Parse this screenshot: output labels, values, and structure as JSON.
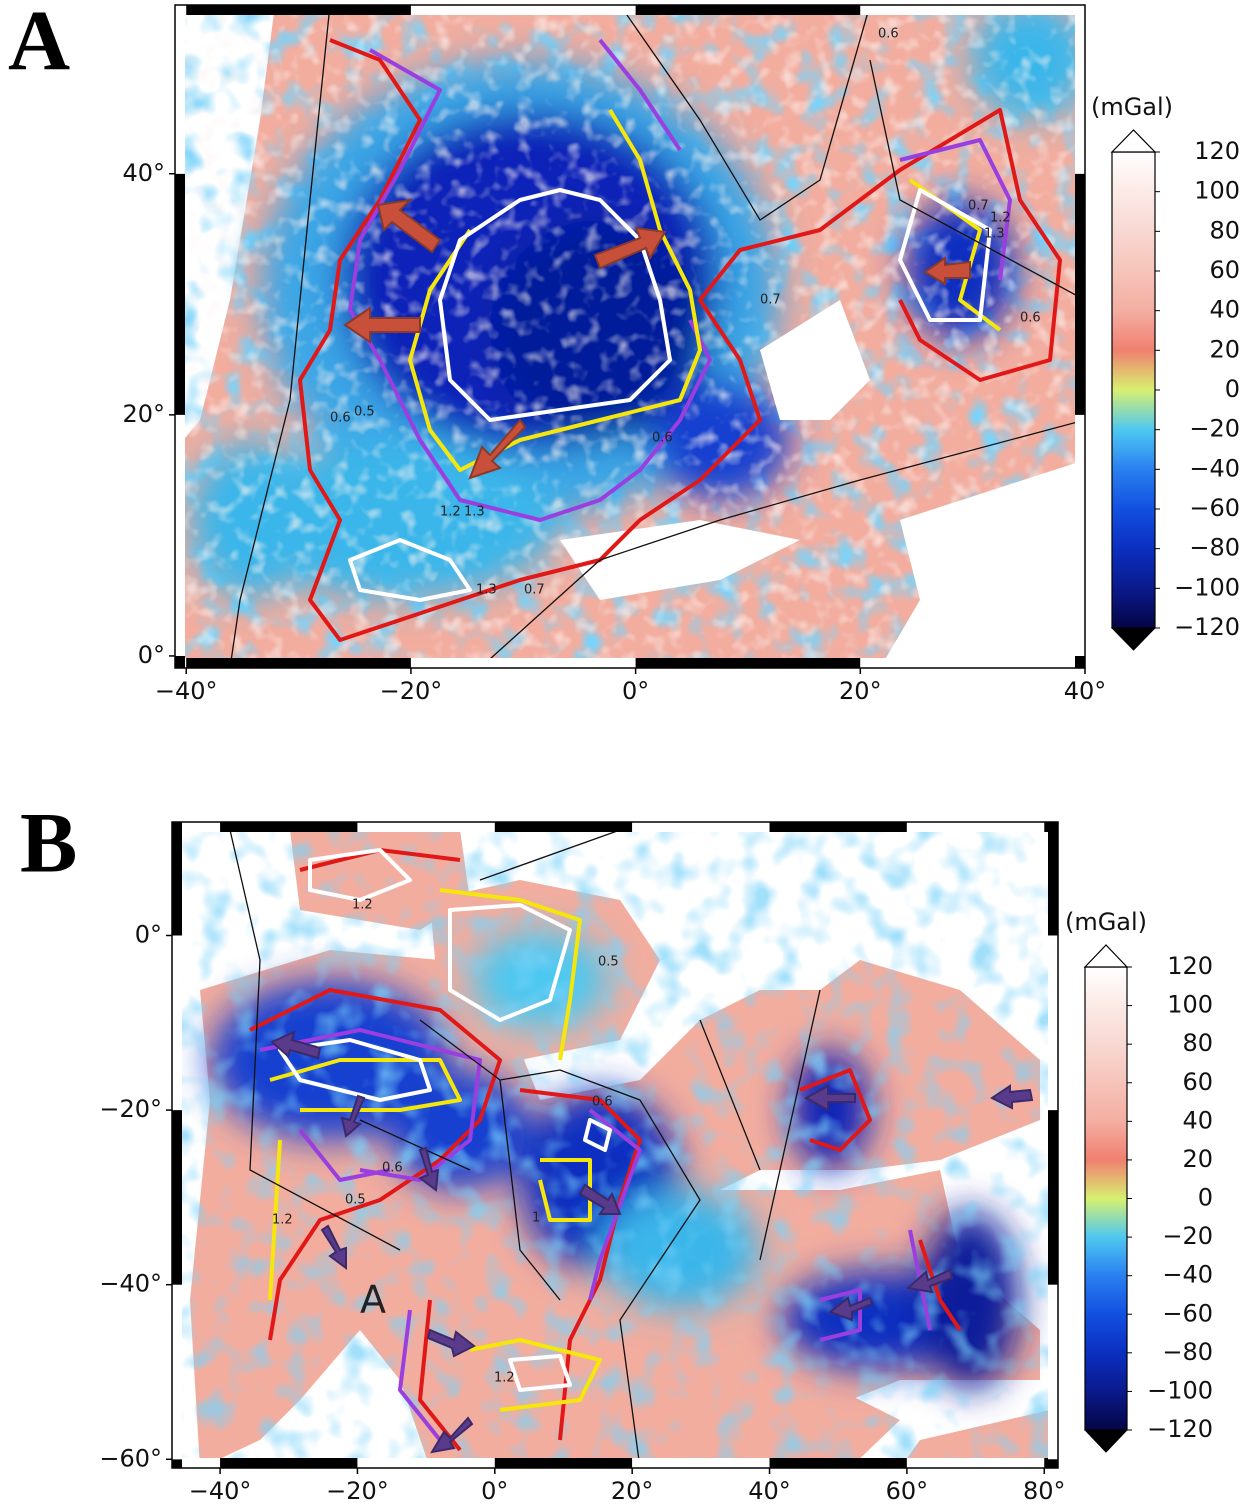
{
  "panels": [
    {
      "label": "A",
      "xlim": [
        -41,
        40
      ],
      "ylim": [
        -1,
        54
      ],
      "xticks": [
        {
          "value": -40,
          "label": "−40°"
        },
        {
          "value": -20,
          "label": "−20°"
        },
        {
          "value": 0,
          "label": "0°"
        },
        {
          "value": 20,
          "label": "20°"
        },
        {
          "value": 40,
          "label": "40°"
        }
      ],
      "yticks": [
        {
          "value": 0,
          "label": "0°"
        },
        {
          "value": 20,
          "label": "20°"
        },
        {
          "value": 40,
          "label": "40°"
        }
      ],
      "colorbar": {
        "unit": "(mGal)",
        "lim": [
          -120,
          120
        ],
        "ticks": [
          120,
          100,
          80,
          60,
          40,
          20,
          0,
          {
            "value": -20,
            "label": "−20"
          },
          {
            "value": -40,
            "label": "−40"
          },
          {
            "value": -60,
            "label": "−60"
          },
          {
            "value": -80,
            "label": "−80"
          },
          {
            "value": -100,
            "label": "−100"
          },
          {
            "value": -120,
            "label": "−120"
          }
        ],
        "colors": [
          "#050545",
          "#0a1a8c",
          "#0b2fc0",
          "#1250e0",
          "#2a80f0",
          "#4ec8f0",
          "#d8f070",
          "#f08070",
          "#f4aea2",
          "#f6c4ba",
          "#f8d8d2",
          "#fbeae6",
          "#ffffff"
        ]
      },
      "contour_labels": [
        0.6,
        0.5,
        1.2,
        1.3,
        0.7,
        1.3,
        0.6,
        0.7,
        0.6,
        0.7,
        1.2,
        1.3,
        0.6
      ]
    },
    {
      "label": "B",
      "xlim": [
        -47,
        82
      ],
      "ylim": [
        -61,
        13
      ],
      "xticks": [
        {
          "value": -40,
          "label": "−40°"
        },
        {
          "value": -20,
          "label": "−20°"
        },
        {
          "value": 0,
          "label": "0°"
        },
        {
          "value": 20,
          "label": "20°"
        },
        {
          "value": 40,
          "label": "40°"
        },
        {
          "value": 60,
          "label": "60°"
        },
        {
          "value": 80,
          "label": "80°"
        }
      ],
      "yticks": [
        {
          "value": 0,
          "label": "0°"
        },
        {
          "value": -20,
          "label": "−20°"
        },
        {
          "value": -40,
          "label": "−40°"
        },
        {
          "value": -60,
          "label": "−60°"
        }
      ],
      "colorbar": {
        "unit": "(mGal)",
        "lim": [
          -120,
          120
        ],
        "ticks": [
          120,
          100,
          80,
          60,
          40,
          20,
          0,
          {
            "value": -20,
            "label": "−20"
          },
          {
            "value": -40,
            "label": "−40"
          },
          {
            "value": -60,
            "label": "−60"
          },
          {
            "value": -80,
            "label": "−80"
          },
          {
            "value": -100,
            "label": "−100"
          },
          {
            "value": -120,
            "label": "−120"
          }
        ],
        "colors": [
          "#050545",
          "#0a1a8c",
          "#0b2fc0",
          "#1250e0",
          "#2a80f0",
          "#4ec8f0",
          "#d8f070",
          "#f08070",
          "#f4aea2",
          "#f6c4ba",
          "#f8d8d2",
          "#fbeae6",
          "#ffffff"
        ]
      },
      "contour_labels": [
        1.2,
        0.5,
        0.6,
        0.6,
        0.5,
        1.2,
        1,
        1.2
      ],
      "annotation": "A"
    }
  ]
}
